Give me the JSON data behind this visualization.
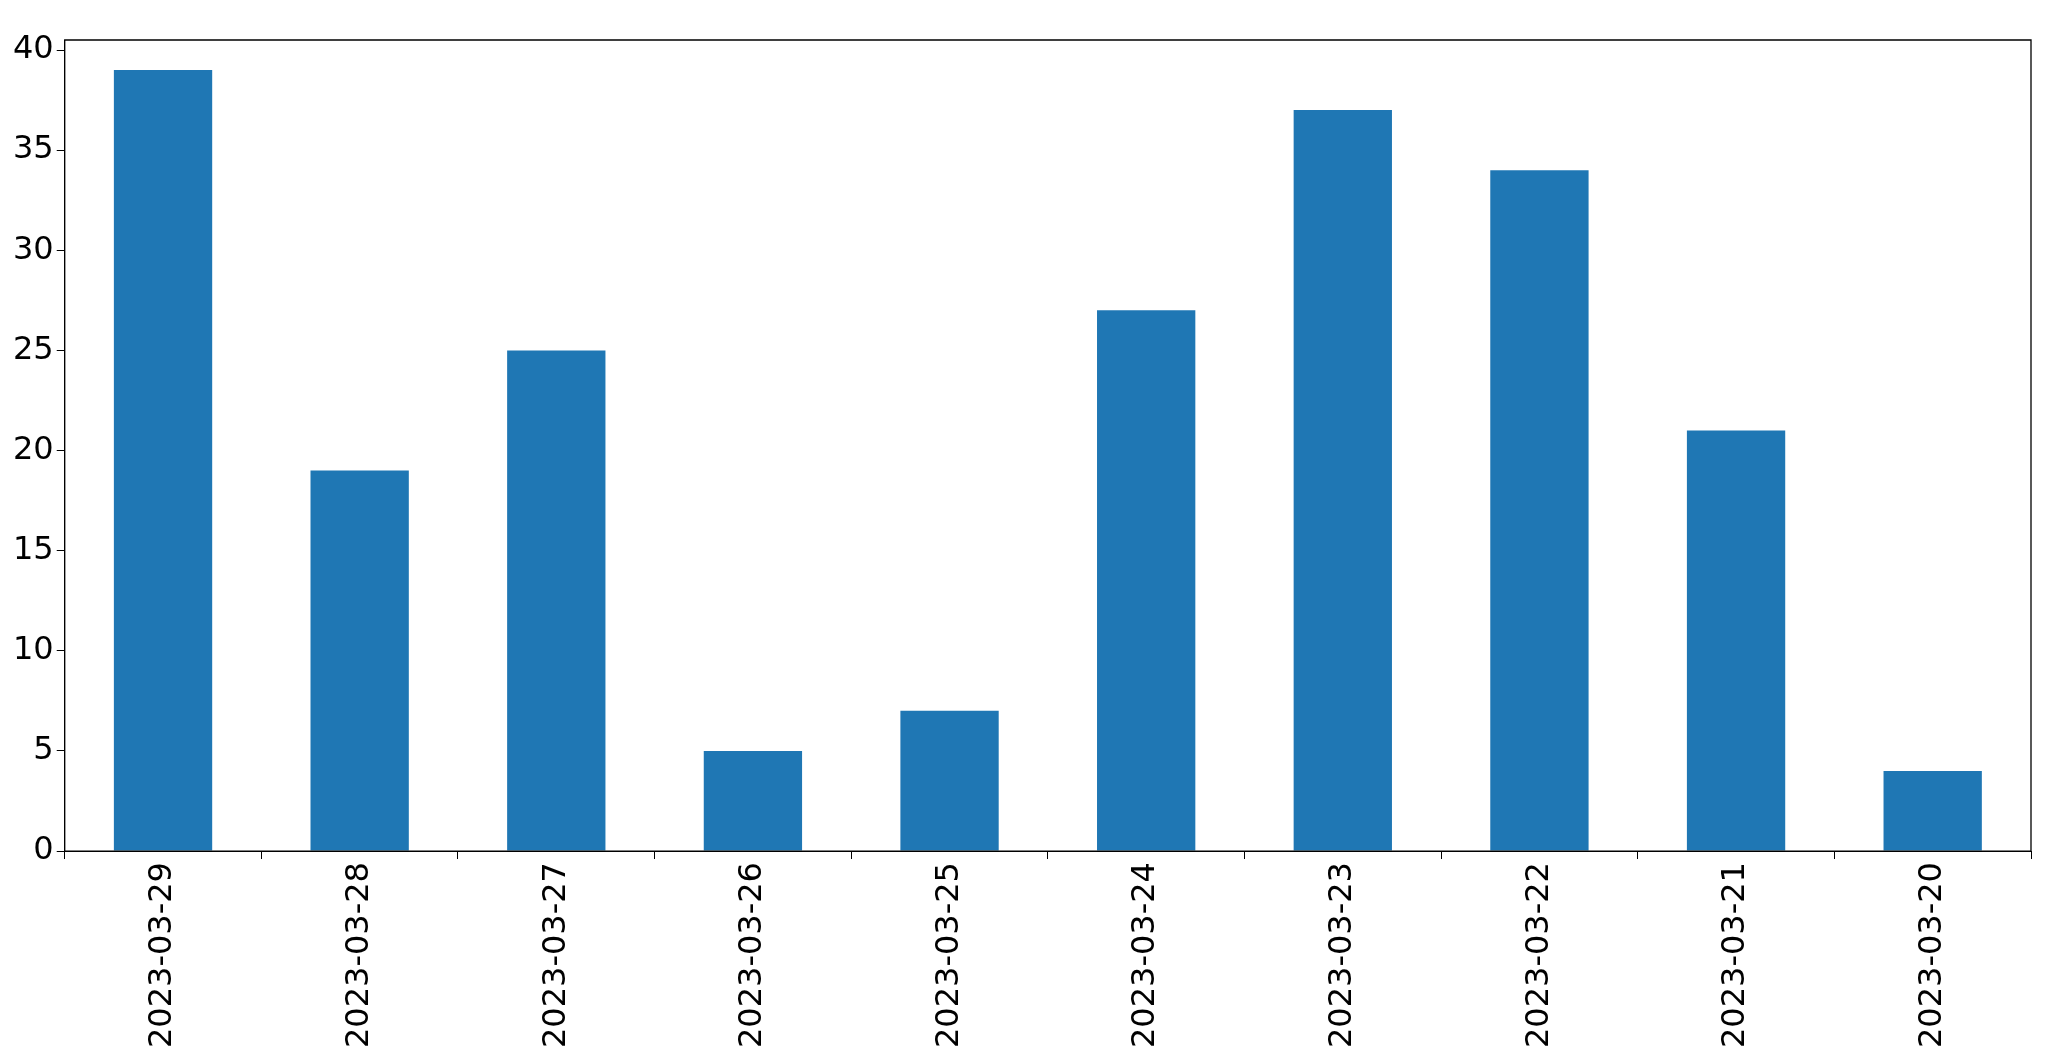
{
  "chart_data": {
    "type": "bar",
    "categories": [
      "2023-03-29",
      "2023-03-28",
      "2023-03-27",
      "2023-03-26",
      "2023-03-25",
      "2023-03-24",
      "2023-03-23",
      "2023-03-22",
      "2023-03-21",
      "2023-03-20"
    ],
    "values": [
      39,
      19,
      25,
      5,
      7,
      27,
      37,
      34,
      21,
      4
    ],
    "color": "#1f77b4",
    "ylim": [
      0,
      40.5
    ],
    "yticks": [
      0,
      5,
      10,
      15,
      20,
      25,
      30,
      35,
      40
    ]
  }
}
